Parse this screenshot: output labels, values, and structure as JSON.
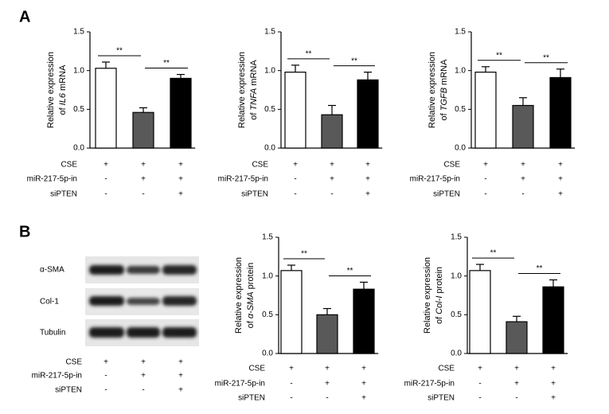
{
  "panels": {
    "a": "A",
    "b": "B"
  },
  "conditions": [
    {
      "name": "CSE",
      "signs": [
        "+",
        "+",
        "+"
      ]
    },
    {
      "name": "miR-217-5p-in",
      "signs": [
        "-",
        "+",
        "+"
      ]
    },
    {
      "name": "siPTEN",
      "signs": [
        "-",
        "-",
        "+"
      ]
    }
  ],
  "blot": {
    "bands": [
      "α-SMA",
      "Col-1",
      "Tubulin"
    ]
  },
  "chart_data": [
    {
      "type": "bar",
      "ylabel": {
        "line1": "Relative expression",
        "prefix": "of",
        "gene": "IL6",
        "suffix": "mRNA"
      },
      "values": [
        1.03,
        0.46,
        0.9
      ],
      "errors": [
        0.08,
        0.06,
        0.05
      ],
      "colors": [
        "#ffffff",
        "#595959",
        "#000000"
      ],
      "ylim": [
        0,
        1.5
      ],
      "yticks": [
        {
          "value": 0,
          "label": "0.0"
        },
        0.5,
        {
          "value": 1,
          "label": "1.0"
        },
        1.5
      ],
      "annotations": [
        "**",
        "**"
      ]
    },
    {
      "type": "bar",
      "ylabel": {
        "line1": "Relative expression",
        "prefix": "of",
        "gene": "TNFA",
        "suffix": "mRNA"
      },
      "values": [
        0.98,
        0.43,
        0.88
      ],
      "errors": [
        0.09,
        0.12,
        0.1
      ],
      "colors": [
        "#ffffff",
        "#595959",
        "#000000"
      ],
      "ylim": [
        0,
        1.5
      ],
      "yticks": [
        {
          "value": 0,
          "label": "0.0"
        },
        0.5,
        {
          "value": 1,
          "label": "1.0"
        },
        1.5
      ],
      "annotations": [
        "**",
        "**"
      ]
    },
    {
      "type": "bar",
      "ylabel": {
        "line1": "Relative expression",
        "prefix": "of",
        "gene": "TGFB",
        "suffix": "mRNA"
      },
      "values": [
        0.98,
        0.55,
        0.91
      ],
      "errors": [
        0.07,
        0.1,
        0.11
      ],
      "colors": [
        "#ffffff",
        "#595959",
        "#000000"
      ],
      "ylim": [
        0,
        1.5
      ],
      "yticks": [
        {
          "value": 0,
          "label": "0.0"
        },
        0.5,
        {
          "value": 1,
          "label": "1.0"
        },
        1.5
      ],
      "annotations": [
        "**",
        "**"
      ]
    },
    {
      "type": "bar",
      "ylabel": {
        "line1": "Relative expression",
        "prefix": "of",
        "gene": "α-SMA",
        "suffix": "protein"
      },
      "values": [
        1.07,
        0.5,
        0.83
      ],
      "errors": [
        0.07,
        0.08,
        0.09
      ],
      "colors": [
        "#ffffff",
        "#595959",
        "#000000"
      ],
      "ylim": [
        0,
        1.5
      ],
      "yticks": [
        {
          "value": 0,
          "label": "0.0"
        },
        0.5,
        {
          "value": 1,
          "label": "1.0"
        },
        1.5
      ],
      "annotations": [
        "**",
        "**"
      ]
    },
    {
      "type": "bar",
      "ylabel": {
        "line1": "Relative expression",
        "prefix": "of",
        "gene": "Col-I",
        "suffix": "protein"
      },
      "values": [
        1.07,
        0.41,
        0.86
      ],
      "errors": [
        0.08,
        0.07,
        0.09
      ],
      "colors": [
        "#ffffff",
        "#595959",
        "#000000"
      ],
      "ylim": [
        0,
        1.5
      ],
      "yticks": [
        {
          "value": 0,
          "label": "0.0"
        },
        0.5,
        {
          "value": 1,
          "label": "1.0"
        },
        1.5
      ],
      "annotations": [
        "**",
        "**"
      ]
    }
  ]
}
